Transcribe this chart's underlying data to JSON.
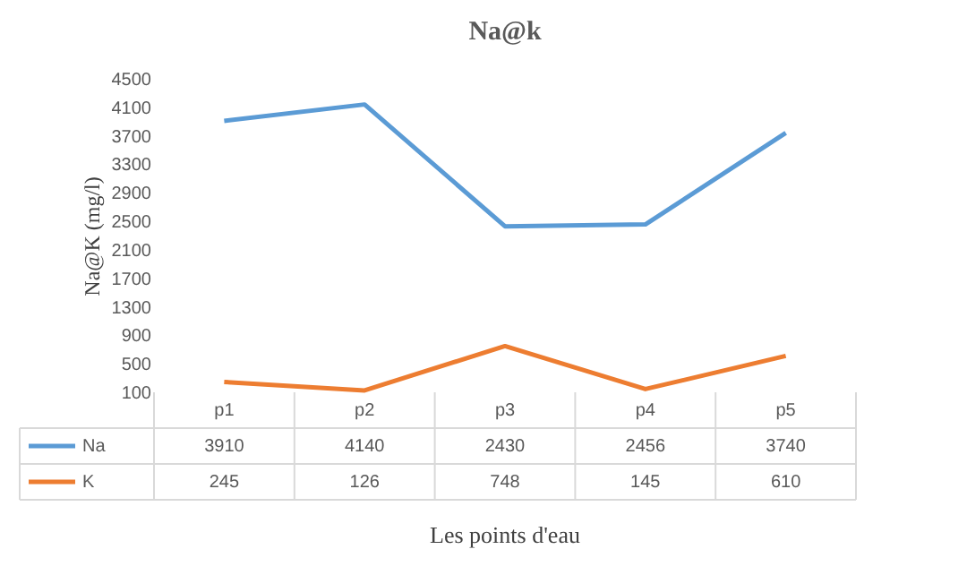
{
  "chart_data": {
    "type": "line",
    "title": "Na@k",
    "xlabel": "Les points d'eau",
    "ylabel": "Na@K (mg/l)",
    "categories": [
      "p1",
      "p2",
      "p3",
      "p4",
      "p5"
    ],
    "series": [
      {
        "name": "Na",
        "color": "#5b9bd5",
        "values": [
          3910,
          4140,
          2430,
          2456,
          3740
        ]
      },
      {
        "name": "K",
        "color": "#ed7d31",
        "values": [
          245,
          126,
          748,
          145,
          610
        ]
      }
    ],
    "ylim": [
      100,
      4500
    ],
    "yticks": [
      100,
      500,
      900,
      1300,
      1700,
      2100,
      2500,
      2900,
      3300,
      3700,
      4100,
      4500
    ],
    "data_labels": true,
    "legend": "bottom",
    "grid": false,
    "marker": "none",
    "line_style": "solid"
  }
}
